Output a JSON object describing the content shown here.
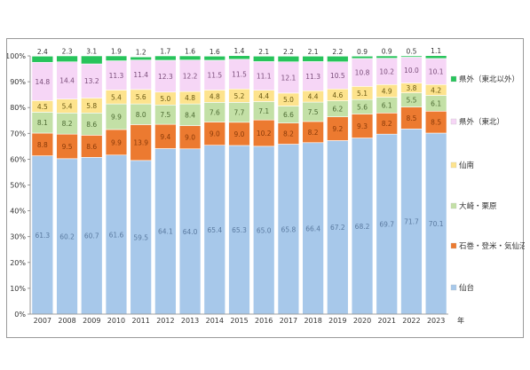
{
  "chart_data": {
    "type": "bar",
    "stacked": true,
    "categories": [
      "2007",
      "2008",
      "2009",
      "2010",
      "2011",
      "2012",
      "2013",
      "2014",
      "2015",
      "2016",
      "2017",
      "2018",
      "2019",
      "2020",
      "2021",
      "2022",
      "2023"
    ],
    "x_unit": "年",
    "ylim": [
      0,
      100
    ],
    "y_ticks": [
      "0%",
      "10%",
      "20%",
      "30%",
      "40%",
      "50%",
      "60%",
      "70%",
      "80%",
      "90%",
      "100%"
    ],
    "grid": false,
    "legend_position": "right",
    "series": [
      {
        "name": "仙台",
        "color": "#a7c8ea",
        "label_color": "#5a7aa0",
        "values": [
          61.3,
          60.2,
          60.7,
          61.6,
          59.5,
          64.1,
          64.0,
          65.4,
          65.3,
          65.0,
          65.8,
          66.4,
          67.2,
          68.2,
          69.7,
          71.7,
          70.1
        ]
      },
      {
        "name": "石巻・登米・気仙沼",
        "color": "#ec7a30",
        "label_color": "#8a3a08",
        "values": [
          8.8,
          9.5,
          8.6,
          9.9,
          13.9,
          9.4,
          9.0,
          9.0,
          9.0,
          10.2,
          8.2,
          8.2,
          9.2,
          9.3,
          8.2,
          8.5,
          8.5
        ]
      },
      {
        "name": "大崎・栗原",
        "color": "#c3e0a6",
        "label_color": "#4d6b33",
        "values": [
          8.1,
          8.2,
          8.6,
          9.9,
          8.0,
          7.5,
          8.4,
          7.6,
          7.7,
          7.1,
          6.6,
          7.5,
          6.2,
          5.6,
          6.1,
          5.5,
          6.1
        ]
      },
      {
        "name": "仙南",
        "color": "#fde38d",
        "label_color": "#6b5a13",
        "values": [
          4.5,
          5.4,
          5.8,
          5.4,
          5.6,
          5.0,
          4.8,
          4.8,
          5.2,
          4.4,
          5.0,
          4.4,
          4.6,
          5.1,
          4.9,
          3.8,
          4.2
        ]
      },
      {
        "name": "県外（東北）",
        "color": "#f6d6f6",
        "label_color": "#7a4e7a",
        "values": [
          14.8,
          14.4,
          13.2,
          11.3,
          11.4,
          12.3,
          12.2,
          11.5,
          11.5,
          11.1,
          12.1,
          11.3,
          10.5,
          10.8,
          10.2,
          10.0,
          10.1
        ]
      },
      {
        "name": "県外（東北以外）",
        "color": "#27c45b",
        "label_color": "#333333",
        "values": [
          2.4,
          2.3,
          3.1,
          1.9,
          1.2,
          1.7,
          1.6,
          1.6,
          1.4,
          2.1,
          2.2,
          2.1,
          2.2,
          0.9,
          0.9,
          0.5,
          1.1
        ]
      }
    ],
    "legend_order": [
      "県外（東北以外）",
      "県外（東北）",
      "仙南",
      "大崎・栗原",
      "石巻・登米・気仙沼",
      "仙台"
    ]
  }
}
